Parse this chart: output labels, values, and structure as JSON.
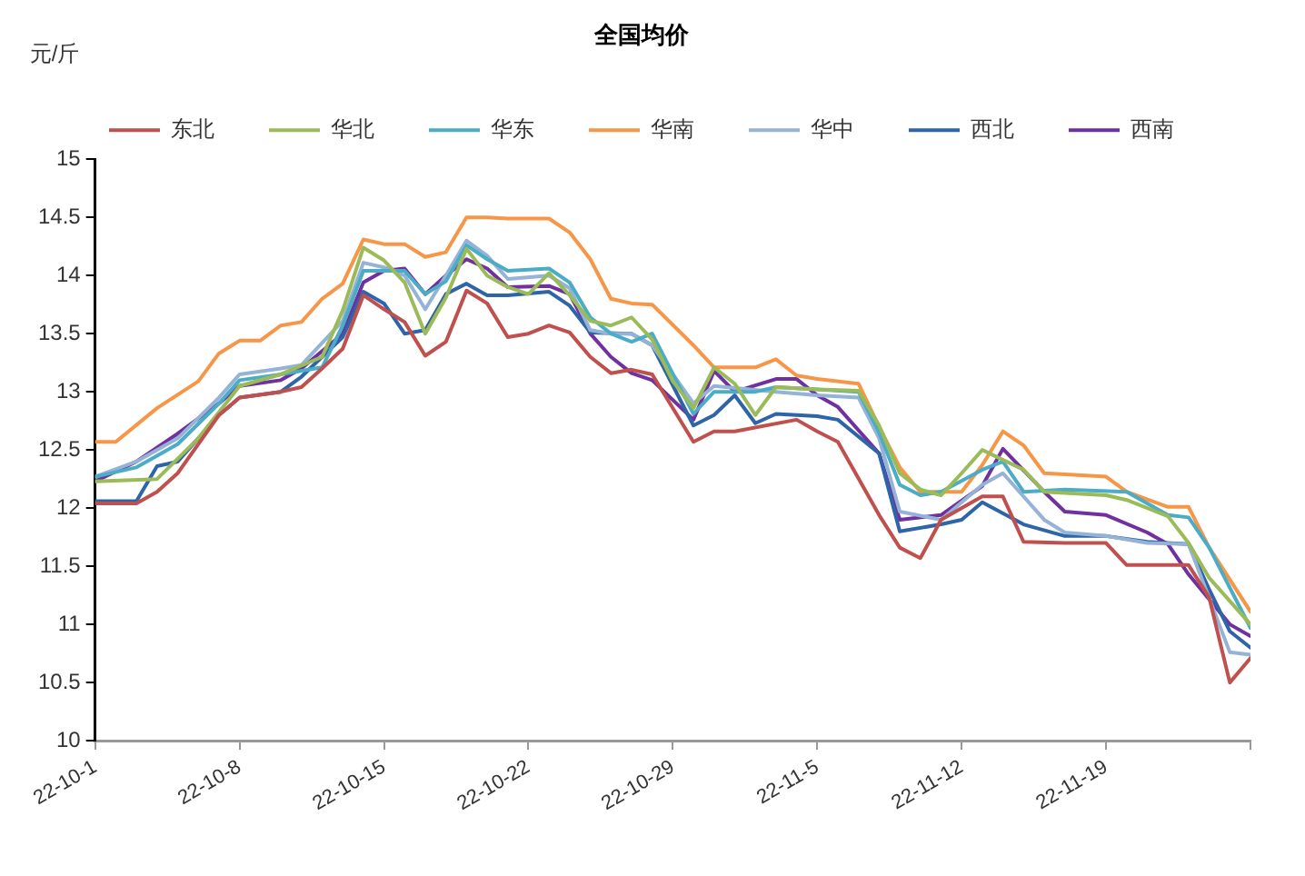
{
  "chart_data": {
    "type": "line",
    "title": "全国均价",
    "ylabel": "元/斤",
    "ylim": [
      10,
      15
    ],
    "yticks": [
      10,
      10.5,
      11,
      11.5,
      12,
      12.5,
      13,
      13.5,
      14,
      14.5,
      15
    ],
    "xlim": [
      "--10-01",
      "--11-26"
    ],
    "xticks": [
      {
        "value": "--10-01",
        "label": "22-10-1"
      },
      {
        "value": "--10-08",
        "label": "22-10-8"
      },
      {
        "value": "--10-15",
        "label": "22-10-15"
      },
      {
        "value": "--10-22",
        "label": "22-10-22"
      },
      {
        "value": "--10-29",
        "label": "22-10-29"
      },
      {
        "value": "--11-05",
        "label": "22-11-5"
      },
      {
        "value": "--11-12",
        "label": "22-11-12"
      },
      {
        "value": "--11-19",
        "label": "22-11-19"
      },
      {
        "value": "--11-26",
        "label": null
      }
    ],
    "grid": false,
    "legend": "top",
    "marker": "none",
    "line_style": "solid",
    "series": [
      {
        "name": "东北",
        "color": "#c0504d",
        "x": [
          "--10-01",
          "--10-03",
          "--10-04",
          "--10-05",
          "--10-07",
          "--10-08",
          "--10-10",
          "--10-11",
          "--10-12",
          "--10-13",
          "--10-14",
          "--10-15",
          "--10-16",
          "--10-17",
          "--10-18",
          "--10-19",
          "--10-20",
          "--10-21",
          "--10-22",
          "--10-23",
          "--10-24",
          "--10-25",
          "--10-26",
          "--10-27",
          "--10-28",
          "--10-30",
          "--10-31",
          "--11-01",
          "--11-04",
          "--11-05",
          "--11-06",
          "--11-08",
          "--11-09",
          "--11-10",
          "--11-11",
          "--11-13",
          "--11-14",
          "--11-15",
          "--11-17",
          "--11-19",
          "--11-20",
          "--11-23",
          "--11-24",
          "--11-25",
          "--11-26"
        ],
        "values": [
          12.04,
          12.04,
          12.14,
          12.3,
          12.8,
          12.95,
          13.0,
          13.04,
          13.2,
          13.37,
          13.83,
          13.71,
          13.6,
          13.31,
          13.43,
          13.87,
          13.76,
          13.47,
          13.5,
          13.57,
          13.51,
          13.3,
          13.16,
          13.19,
          13.15,
          12.57,
          12.66,
          12.66,
          12.76,
          12.66,
          12.57,
          11.94,
          11.66,
          11.57,
          11.9,
          12.1,
          12.1,
          11.71,
          11.7,
          11.7,
          11.51,
          11.51,
          11.23,
          10.5,
          10.71
        ]
      },
      {
        "name": "华北",
        "color": "#9bbb59",
        "x": [
          "--10-01",
          "--10-04",
          "--10-06",
          "--10-08",
          "--10-10",
          "--10-12",
          "--10-13",
          "--10-14",
          "--10-15",
          "--10-16",
          "--10-17",
          "--10-18",
          "--10-19",
          "--10-20",
          "--10-21",
          "--10-22",
          "--10-23",
          "--10-24",
          "--10-25",
          "--10-26",
          "--10-27",
          "--10-28",
          "--10-29",
          "--10-30",
          "--10-31",
          "--11-01",
          "--11-02",
          "--11-03",
          "--11-05",
          "--11-07",
          "--11-08",
          "--11-09",
          "--11-10",
          "--11-11",
          "--11-12",
          "--11-13",
          "--11-15",
          "--11-16",
          "--11-19",
          "--11-20",
          "--11-22",
          "--11-23",
          "--11-24",
          "--11-26"
        ],
        "values": [
          12.23,
          12.25,
          12.6,
          13.05,
          13.15,
          13.3,
          13.7,
          14.24,
          14.13,
          13.94,
          13.5,
          13.81,
          14.23,
          14.0,
          13.9,
          13.84,
          14.02,
          13.83,
          13.61,
          13.57,
          13.64,
          13.45,
          13.09,
          12.86,
          13.21,
          13.07,
          12.8,
          13.04,
          13.02,
          13.01,
          12.71,
          12.3,
          12.16,
          12.11,
          12.3,
          12.5,
          12.33,
          12.14,
          12.11,
          12.07,
          11.93,
          11.7,
          11.4,
          11.0
        ]
      },
      {
        "name": "华东",
        "color": "#4bacc6",
        "x": [
          "--10-01",
          "--10-03",
          "--10-05",
          "--10-07",
          "--10-08",
          "--10-10",
          "--10-12",
          "--10-13",
          "--10-14",
          "--10-15",
          "--10-16",
          "--10-17",
          "--10-18",
          "--10-19",
          "--10-20",
          "--10-21",
          "--10-23",
          "--10-24",
          "--10-25",
          "--10-26",
          "--10-27",
          "--10-28",
          "--10-30",
          "--10-31",
          "--11-02",
          "--11-03",
          "--11-05",
          "--11-07",
          "--11-08",
          "--11-09",
          "--11-10",
          "--11-11",
          "--11-13",
          "--11-14",
          "--11-15",
          "--11-17",
          "--11-20",
          "--11-22",
          "--11-23",
          "--11-24",
          "--11-26"
        ],
        "values": [
          12.27,
          12.35,
          12.55,
          12.9,
          13.1,
          13.15,
          13.21,
          13.57,
          14.04,
          14.04,
          14.04,
          13.84,
          13.95,
          14.26,
          14.14,
          14.04,
          14.06,
          13.94,
          13.64,
          13.5,
          13.43,
          13.5,
          12.81,
          13.0,
          13.0,
          13.04,
          13.02,
          13.0,
          12.65,
          12.2,
          12.11,
          12.14,
          12.33,
          12.4,
          12.14,
          12.16,
          12.14,
          11.94,
          11.92,
          11.66,
          10.97
        ]
      },
      {
        "name": "华南",
        "color": "#f79646",
        "x": [
          "--10-01",
          "--10-02",
          "--10-04",
          "--10-06",
          "--10-07",
          "--10-08",
          "--10-09",
          "--10-10",
          "--10-11",
          "--10-12",
          "--10-13",
          "--10-14",
          "--10-15",
          "--10-16",
          "--10-17",
          "--10-18",
          "--10-19",
          "--10-20",
          "--10-21",
          "--10-23",
          "--10-24",
          "--10-25",
          "--10-26",
          "--10-27",
          "--10-28",
          "--10-30",
          "--10-31",
          "--11-02",
          "--11-03",
          "--11-04",
          "--11-05",
          "--11-07",
          "--11-08",
          "--11-09",
          "--11-10",
          "--11-12",
          "--11-13",
          "--11-14",
          "--11-15",
          "--11-16",
          "--11-19",
          "--11-20",
          "--11-22",
          "--11-23",
          "--11-24",
          "--11-26"
        ],
        "values": [
          12.57,
          12.57,
          12.86,
          13.09,
          13.33,
          13.44,
          13.44,
          13.57,
          13.6,
          13.8,
          13.93,
          14.31,
          14.27,
          14.27,
          14.16,
          14.2,
          14.5,
          14.5,
          14.49,
          14.49,
          14.37,
          14.14,
          13.8,
          13.76,
          13.75,
          13.4,
          13.21,
          13.21,
          13.28,
          13.14,
          13.11,
          13.07,
          12.7,
          12.35,
          12.14,
          12.14,
          12.37,
          12.66,
          12.54,
          12.3,
          12.27,
          12.14,
          12.01,
          12.01,
          11.66,
          11.11
        ]
      },
      {
        "name": "华中",
        "color": "#95b3d7",
        "x": [
          "--10-01",
          "--10-03",
          "--10-05",
          "--10-07",
          "--10-08",
          "--10-10",
          "--10-11",
          "--10-13",
          "--10-14",
          "--10-15",
          "--10-16",
          "--10-17",
          "--10-18",
          "--10-19",
          "--10-20",
          "--10-21",
          "--10-23",
          "--10-24",
          "--10-25",
          "--10-26",
          "--10-27",
          "--10-28",
          "--10-30",
          "--10-31",
          "--11-03",
          "--11-05",
          "--11-07",
          "--11-08",
          "--11-09",
          "--11-11",
          "--11-13",
          "--11-14",
          "--11-16",
          "--11-17",
          "--11-19",
          "--11-21",
          "--11-23",
          "--11-25",
          "--11-26"
        ],
        "values": [
          12.27,
          12.4,
          12.6,
          12.95,
          13.15,
          13.2,
          13.23,
          13.61,
          14.11,
          14.07,
          14.0,
          13.71,
          14.0,
          14.3,
          14.17,
          13.97,
          14.0,
          13.89,
          13.53,
          13.5,
          13.5,
          13.4,
          12.9,
          13.05,
          13.0,
          12.97,
          12.95,
          12.6,
          11.97,
          11.9,
          12.2,
          12.3,
          11.9,
          11.79,
          11.76,
          11.7,
          11.69,
          10.76,
          10.74
        ]
      },
      {
        "name": "西北",
        "color": "#2e64a8",
        "x": [
          "--10-01",
          "--10-03",
          "--10-04",
          "--10-05",
          "--10-07",
          "--10-08",
          "--10-10",
          "--10-11",
          "--10-13",
          "--10-14",
          "--10-15",
          "--10-16",
          "--10-17",
          "--10-18",
          "--10-19",
          "--10-20",
          "--10-21",
          "--10-23",
          "--10-24",
          "--10-25",
          "--10-27",
          "--10-28",
          "--10-30",
          "--10-31",
          "--11-01",
          "--11-02",
          "--11-03",
          "--11-05",
          "--11-06",
          "--11-08",
          "--11-09",
          "--11-11",
          "--11-12",
          "--11-13",
          "--11-15",
          "--11-17",
          "--11-19",
          "--11-21",
          "--11-23",
          "--11-24",
          "--11-25",
          "--11-26"
        ],
        "values": [
          12.06,
          12.06,
          12.36,
          12.4,
          12.8,
          12.95,
          13.0,
          13.13,
          13.47,
          13.86,
          13.76,
          13.5,
          13.53,
          13.84,
          13.93,
          13.83,
          13.83,
          13.86,
          13.74,
          13.51,
          13.5,
          13.4,
          12.71,
          12.8,
          12.97,
          12.73,
          12.81,
          12.79,
          12.76,
          12.47,
          11.8,
          11.86,
          11.9,
          12.05,
          11.86,
          11.76,
          11.76,
          11.71,
          11.69,
          11.3,
          10.94,
          10.8
        ]
      },
      {
        "name": "西南",
        "color": "#7030a0",
        "x": [
          "--10-01",
          "--10-03",
          "--10-05",
          "--10-07",
          "--10-08",
          "--10-10",
          "--10-11",
          "--10-13",
          "--10-14",
          "--10-15",
          "--10-16",
          "--10-17",
          "--10-18",
          "--10-19",
          "--10-20",
          "--10-21",
          "--10-23",
          "--10-24",
          "--10-25",
          "--10-26",
          "--10-27",
          "--10-28",
          "--10-30",
          "--10-31",
          "--11-01",
          "--11-03",
          "--11-04",
          "--11-05",
          "--11-06",
          "--11-08",
          "--11-09",
          "--11-11",
          "--11-13",
          "--11-14",
          "--11-16",
          "--11-17",
          "--11-19",
          "--11-21",
          "--11-22",
          "--11-23",
          "--11-25",
          "--11-26"
        ],
        "values": [
          12.23,
          12.4,
          12.64,
          12.9,
          13.05,
          13.1,
          13.2,
          13.5,
          13.94,
          14.04,
          14.06,
          13.84,
          14.0,
          14.14,
          14.06,
          13.9,
          13.91,
          13.84,
          13.5,
          13.3,
          13.16,
          13.1,
          12.76,
          13.18,
          13.0,
          13.11,
          13.11,
          12.97,
          12.87,
          12.47,
          11.9,
          11.94,
          12.19,
          12.51,
          12.14,
          11.97,
          11.94,
          11.79,
          11.69,
          11.43,
          11.0,
          10.9
        ]
      }
    ]
  }
}
